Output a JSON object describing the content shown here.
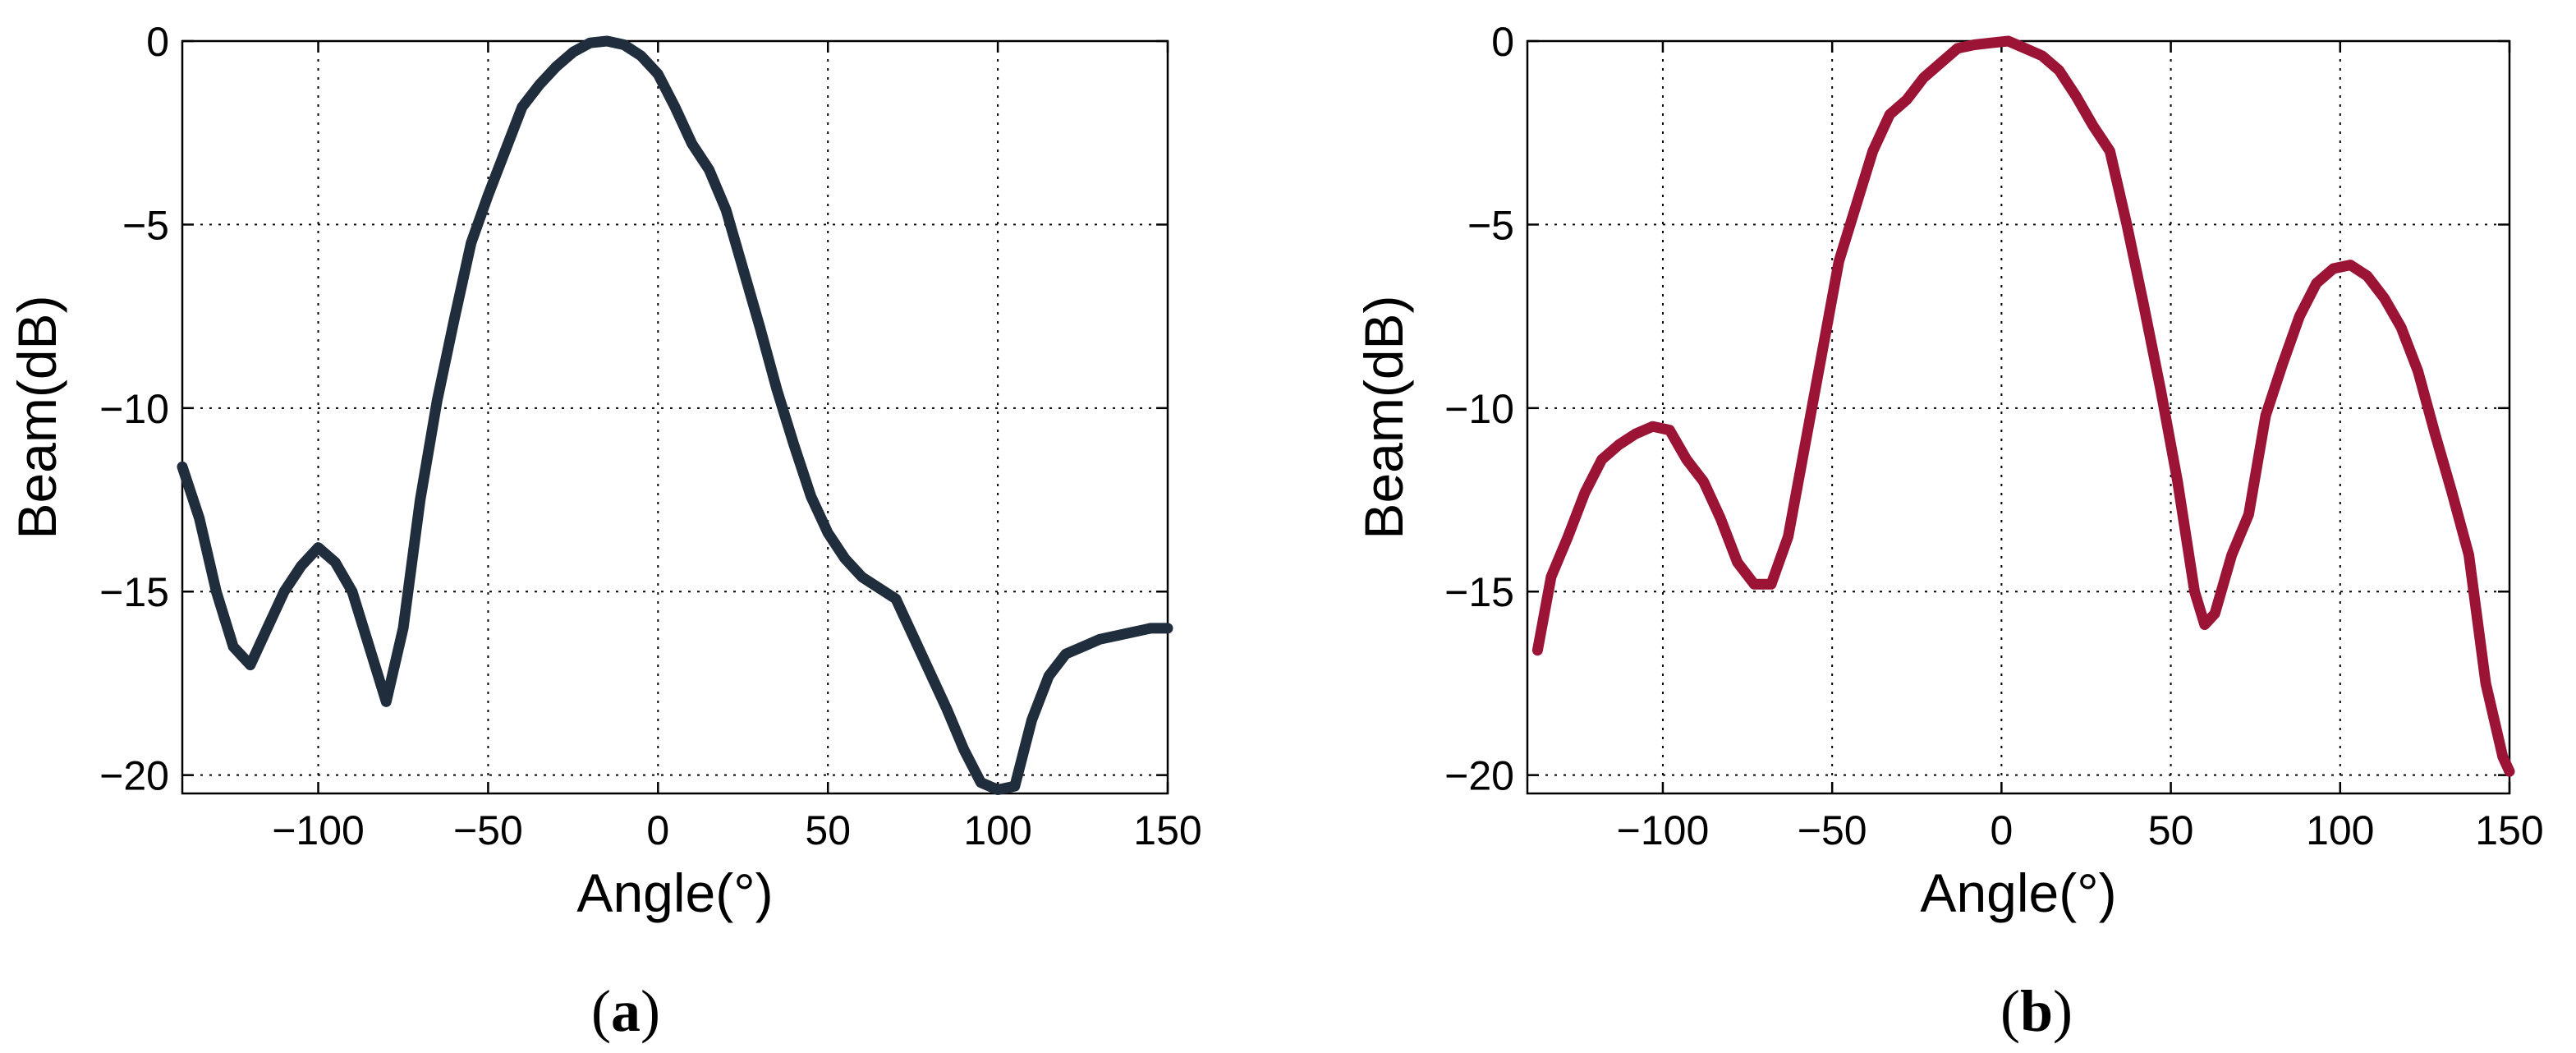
{
  "chart_data": [
    {
      "type": "line",
      "panel_label": "a",
      "xlabel": "Angle(°)",
      "ylabel": "Beam(dB)",
      "xlim": [
        -140,
        150
      ],
      "ylim": [
        -20.5,
        0
      ],
      "xticks": [
        -100,
        -50,
        0,
        50,
        100,
        150
      ],
      "yticks": [
        0,
        -5,
        -10,
        -15,
        -20
      ],
      "grid": true,
      "color": "#1f2d3d",
      "x": [
        -140,
        -135,
        -130,
        -125,
        -120,
        -115,
        -110,
        -105,
        -100,
        -95,
        -90,
        -85,
        -80,
        -75,
        -70,
        -65,
        -60,
        -55,
        -50,
        -45,
        -40,
        -35,
        -30,
        -25,
        -20,
        -15,
        -10,
        -5,
        0,
        5,
        10,
        15,
        20,
        25,
        30,
        35,
        40,
        45,
        50,
        55,
        60,
        65,
        70,
        75,
        80,
        85,
        90,
        95,
        100,
        105,
        110,
        115,
        120,
        125,
        130,
        135,
        140,
        145,
        150
      ],
      "y": [
        -11.6,
        -13.0,
        -15.0,
        -16.5,
        -17.0,
        -16.0,
        -15.0,
        -14.3,
        -13.8,
        -14.2,
        -15.0,
        -16.5,
        -18.0,
        -16.0,
        -12.5,
        -9.8,
        -7.6,
        -5.5,
        -4.2,
        -3.0,
        -1.8,
        -1.2,
        -0.7,
        -0.3,
        -0.05,
        0,
        -0.1,
        -0.4,
        -0.9,
        -1.8,
        -2.8,
        -3.5,
        -4.6,
        -6.2,
        -7.8,
        -9.5,
        -11.0,
        -12.4,
        -13.4,
        -14.1,
        -14.6,
        -14.9,
        -15.2,
        -16.2,
        -17.2,
        -18.2,
        -19.3,
        -20.2,
        -20.4,
        -20.3,
        -18.5,
        -17.3,
        -16.7,
        -16.5,
        -16.3,
        -16.2,
        -16.1,
        -16.0,
        -16.0
      ]
    },
    {
      "type": "line",
      "panel_label": "b",
      "xlabel": "Angle(°)",
      "ylabel": "Beam(dB)",
      "xlim": [
        -140,
        150
      ],
      "ylim": [
        -20.5,
        0
      ],
      "xticks": [
        -100,
        -50,
        0,
        50,
        100,
        150
      ],
      "yticks": [
        0,
        -5,
        -10,
        -15,
        -20
      ],
      "grid": true,
      "color": "#9b1436",
      "x": [
        -137,
        -133,
        -128,
        -123,
        -118,
        -113,
        -108,
        -103,
        -98,
        -93,
        -88,
        -83,
        -78,
        -73,
        -68,
        -63,
        -58,
        -53,
        -48,
        -43,
        -38,
        -33,
        -28,
        -23,
        -18,
        -13,
        -8,
        -3,
        2,
        7,
        12,
        17,
        22,
        27,
        32,
        37,
        42,
        47,
        52,
        57,
        60,
        63,
        68,
        73,
        78,
        83,
        88,
        93,
        98,
        103,
        108,
        113,
        118,
        123,
        128,
        133,
        138,
        143,
        148,
        150
      ],
      "y": [
        -16.6,
        -14.6,
        -13.5,
        -12.3,
        -11.4,
        -11.0,
        -10.7,
        -10.5,
        -10.6,
        -11.4,
        -12.0,
        -13.0,
        -14.2,
        -14.8,
        -14.8,
        -13.5,
        -11.0,
        -8.5,
        -6.0,
        -4.5,
        -3.0,
        -2.0,
        -1.6,
        -1.0,
        -0.6,
        -0.2,
        -0.1,
        -0.05,
        0,
        -0.2,
        -0.4,
        -0.8,
        -1.5,
        -2.3,
        -3.0,
        -5.0,
        -7.2,
        -9.5,
        -12.0,
        -15.0,
        -15.9,
        -15.6,
        -14.0,
        -12.9,
        -10.2,
        -8.8,
        -7.5,
        -6.6,
        -6.2,
        -6.1,
        -6.4,
        -7.0,
        -7.8,
        -9.0,
        -10.7,
        -12.3,
        -14.0,
        -17.5,
        -19.5,
        -19.9
      ]
    }
  ]
}
